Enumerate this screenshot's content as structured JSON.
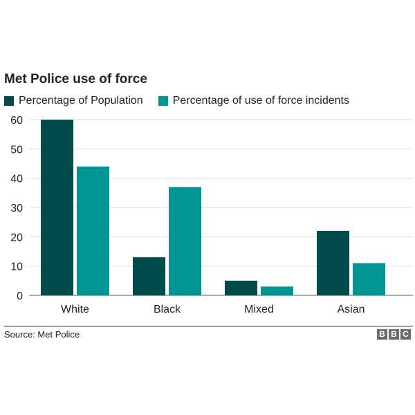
{
  "chart_data": {
    "type": "bar",
    "title": "Met Police use of force",
    "categories": [
      "White",
      "Black",
      "Mixed",
      "Asian"
    ],
    "series": [
      {
        "name": "Percentage of Population",
        "values": [
          60,
          13,
          5,
          22
        ],
        "color": "#004b4b"
      },
      {
        "name": "Percentage of use of force incidents",
        "values": [
          44,
          37,
          3,
          11
        ],
        "color": "#009593"
      }
    ],
    "ylim": [
      0,
      60
    ],
    "yticks": [
      "0",
      "10",
      "20",
      "30",
      "40",
      "50",
      "60"
    ],
    "xlabel": "",
    "ylabel": "",
    "grid": true,
    "legend": "top-left"
  },
  "source": "Source: Met Police",
  "logo": {
    "letters": [
      "B",
      "B",
      "C"
    ]
  }
}
